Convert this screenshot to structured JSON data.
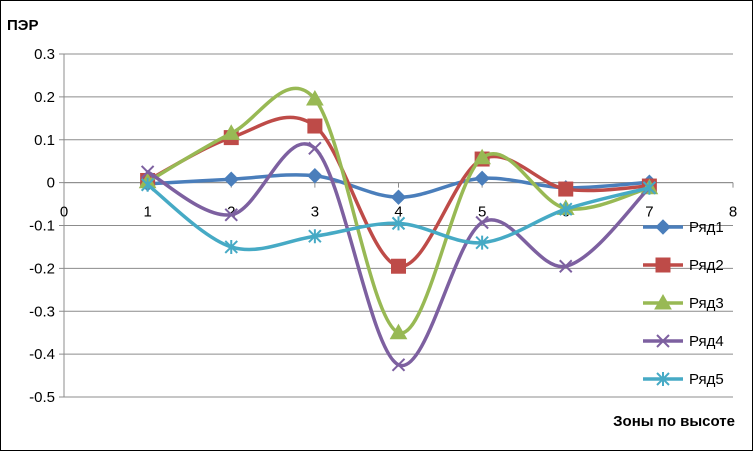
{
  "chart_data": {
    "type": "scatter",
    "mode": "smooth-lines-with-markers",
    "ylabel": "ПЭР",
    "xlabel": "Зоны по высоте",
    "xlim": [
      0,
      8
    ],
    "ylim": [
      -0.5,
      0.3
    ],
    "x_ticks": [
      "0",
      "1",
      "2",
      "3",
      "4",
      "5",
      "6",
      "7",
      "8"
    ],
    "y_ticks": [
      "0.3",
      "0.2",
      "0.1",
      "0",
      "-0.1",
      "-0.2",
      "-0.3",
      "-0.4",
      "-0.5"
    ],
    "grid": "horizontal",
    "legend_position": "right",
    "series": [
      {
        "name": "Ряд1",
        "color": "#4a7ebb",
        "marker": "diamond",
        "x": [
          1,
          2,
          3,
          4,
          5,
          6,
          7
        ],
        "y": [
          -0.003,
          0.008,
          0.016,
          -0.034,
          0.01,
          -0.012,
          0.001
        ]
      },
      {
        "name": "Ряд2",
        "color": "#be4b48",
        "marker": "square",
        "x": [
          1,
          2,
          3,
          4,
          5,
          6,
          7
        ],
        "y": [
          0.005,
          0.105,
          0.132,
          -0.195,
          0.055,
          -0.015,
          -0.008
        ]
      },
      {
        "name": "Ряд3",
        "color": "#98b954",
        "marker": "triangle",
        "x": [
          1,
          2,
          3,
          4,
          5,
          6,
          7
        ],
        "y": [
          0.002,
          0.115,
          0.195,
          -0.35,
          0.058,
          -0.06,
          -0.012
        ]
      },
      {
        "name": "Ряд4",
        "color": "#7d60a0",
        "marker": "x",
        "x": [
          1,
          2,
          3,
          4,
          5,
          6,
          7
        ],
        "y": [
          0.025,
          -0.075,
          0.08,
          -0.425,
          -0.093,
          -0.195,
          -0.012
        ]
      },
      {
        "name": "Ряд5",
        "color": "#46aac5",
        "marker": "star",
        "x": [
          1,
          2,
          3,
          4,
          5,
          6,
          7
        ],
        "y": [
          -0.005,
          -0.15,
          -0.125,
          -0.095,
          -0.14,
          -0.062,
          -0.012
        ]
      }
    ]
  }
}
